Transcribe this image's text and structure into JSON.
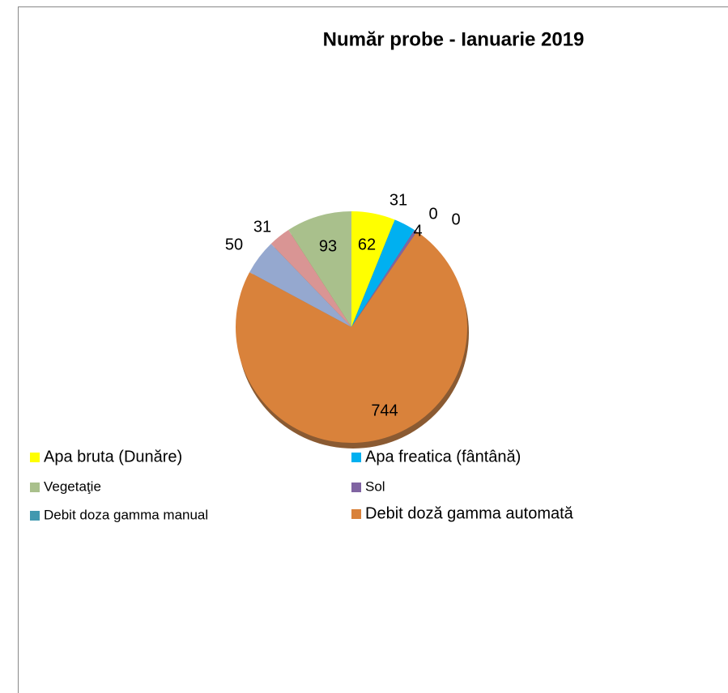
{
  "chart_data": {
    "type": "pie",
    "title": "Număr probe - Ianuarie 2019",
    "categories": [
      "Apa bruta (Dunăre)",
      "Apa freatica (fântână)",
      "Sol",
      "Debit  doza gamma manual",
      null,
      "Debit doză gamma automată",
      null,
      null,
      "Vegetaţie"
    ],
    "values": [
      62,
      31,
      4,
      0,
      0,
      744,
      50,
      31,
      93
    ],
    "colors": [
      "#ffff00",
      "#00b0f0",
      "#8064a2",
      "#4198af",
      "#f79646",
      "#d9823b",
      "#95a8cf",
      "#d99594",
      "#a9c08c"
    ]
  }
}
